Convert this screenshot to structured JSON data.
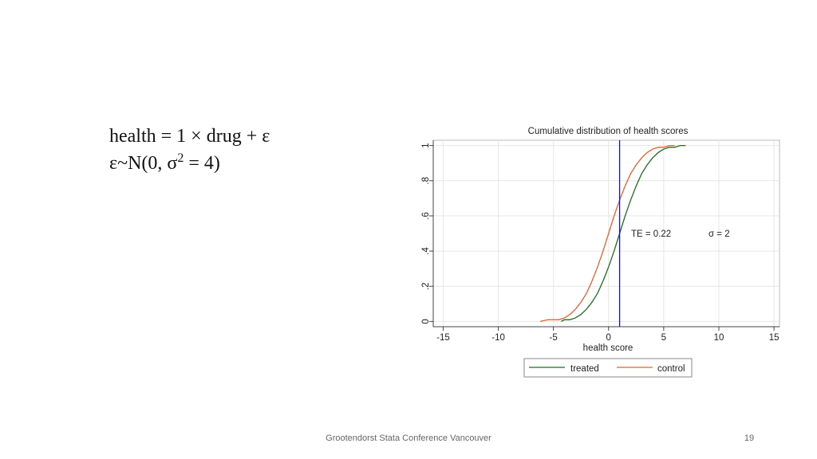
{
  "slide": {
    "equation": {
      "line1": "health = 1 × drug + ε",
      "line2_before": "ε~N(0, σ",
      "line2_sup": "2",
      "line2_after": " = 4)"
    },
    "footer": "Grootendorst Stata Conference Vancouver",
    "page_number": "19"
  },
  "chart_data": {
    "type": "line",
    "title": "Cumulative distribution of health scores",
    "x_label": "health score",
    "xlim": [
      -15.9,
      15.5
    ],
    "ylim": [
      -0.03,
      1.03
    ],
    "xticks": [
      -15,
      -10,
      -5,
      0,
      5,
      10,
      15
    ],
    "yticks": [
      0,
      {
        "value": 0.2,
        "label": ".2"
      },
      {
        "value": 0.4,
        "label": ".4"
      },
      {
        "value": 0.6,
        "label": ".6"
      },
      {
        "value": 0.8,
        "label": ".8"
      },
      1
    ],
    "grid": true,
    "legend": "bottom",
    "annotations": [
      "TE = 0.22",
      "σ = 2"
    ],
    "reference_line": {
      "x": 1,
      "color": "#1a1a9e"
    },
    "series": [
      {
        "name": "treated",
        "color": "#1e6e1e",
        "x": [
          -4.3,
          -4,
          -3.5,
          -3,
          -2.5,
          -2,
          -1.5,
          -1,
          -0.5,
          0,
          0.5,
          1,
          1.5,
          2,
          2.5,
          3,
          3.5,
          4,
          4.5,
          5,
          5.5,
          6,
          6.5,
          7
        ],
        "values": [
          0,
          0.01,
          0.01,
          0.02,
          0.04,
          0.07,
          0.11,
          0.16,
          0.23,
          0.31,
          0.4,
          0.5,
          0.6,
          0.69,
          0.77,
          0.84,
          0.89,
          0.93,
          0.96,
          0.98,
          0.99,
          0.99,
          1,
          1
        ]
      },
      {
        "name": "control",
        "color": "#e8602c",
        "x": [
          -6.2,
          -5.5,
          -5,
          -4.5,
          -4,
          -3.5,
          -3,
          -2.5,
          -2,
          -1.5,
          -1,
          -0.5,
          0,
          0.5,
          1,
          1.5,
          2,
          2.5,
          3,
          3.5,
          4,
          4.5,
          5,
          5.5,
          6
        ],
        "values": [
          0,
          0.01,
          0.01,
          0.01,
          0.02,
          0.04,
          0.07,
          0.11,
          0.16,
          0.23,
          0.31,
          0.4,
          0.5,
          0.6,
          0.69,
          0.77,
          0.84,
          0.89,
          0.93,
          0.96,
          0.98,
          0.99,
          0.99,
          1,
          1
        ]
      }
    ]
  }
}
